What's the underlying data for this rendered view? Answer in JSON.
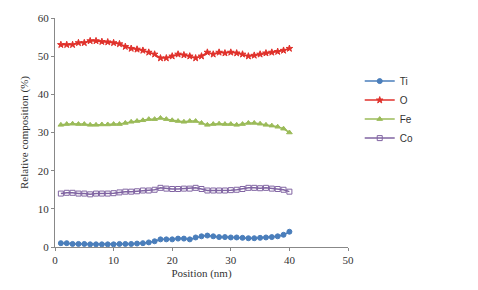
{
  "chart_data": {
    "type": "line",
    "x_label": "Position (nm)",
    "y_label": "Relative composition (%)",
    "x": [
      1,
      2,
      3,
      4,
      5,
      6,
      7,
      8,
      9,
      10,
      11,
      12,
      13,
      14,
      15,
      16,
      17,
      18,
      19,
      20,
      21,
      22,
      23,
      24,
      25,
      26,
      27,
      28,
      29,
      30,
      31,
      32,
      33,
      34,
      35,
      36,
      37,
      38,
      39,
      40
    ],
    "series": [
      {
        "name": "Ti",
        "color": "#4a7ebb",
        "marker": "circle",
        "line_style": "solid",
        "values": [
          1,
          1,
          0.8,
          0.8,
          0.8,
          0.7,
          0.7,
          0.7,
          0.7,
          0.7,
          0.8,
          0.8,
          0.8,
          0.9,
          1,
          1.2,
          1.5,
          2,
          2,
          2,
          2.2,
          2.2,
          2,
          2.5,
          2.8,
          3,
          2.8,
          2.6,
          2.6,
          2.5,
          2.5,
          2.4,
          2.3,
          2.3,
          2.4,
          2.5,
          2.6,
          2.8,
          3.2,
          4
        ]
      },
      {
        "name": "O",
        "color": "#e0312b",
        "marker": "star",
        "line_style": "solid",
        "values": [
          53,
          53,
          53,
          53.5,
          53.5,
          54,
          54,
          53.8,
          53.7,
          53.5,
          53.2,
          52.5,
          52,
          51.8,
          51.5,
          51,
          50.5,
          49.5,
          49.5,
          50,
          50.5,
          50.3,
          50,
          49.5,
          50,
          51,
          50.5,
          51,
          50.8,
          51,
          50.8,
          50.5,
          50,
          50.2,
          50.5,
          50.8,
          51,
          51.2,
          51.5,
          52
        ]
      },
      {
        "name": "Fe",
        "color": "#9bbb59",
        "marker": "triangle-up",
        "line_style": "solid",
        "values": [
          32,
          32.2,
          32.3,
          32.2,
          32.2,
          32,
          32,
          32.1,
          32.1,
          32.2,
          32.2,
          32.5,
          32.8,
          33,
          33.2,
          33.5,
          33.5,
          33.8,
          33.5,
          33.2,
          33,
          32.8,
          33,
          33,
          32.5,
          32,
          32.2,
          32.3,
          32.2,
          32.2,
          32,
          32.2,
          32.5,
          32.5,
          32.3,
          32,
          31.8,
          31.5,
          31,
          30
        ]
      },
      {
        "name": "Co",
        "color": "#8064a2",
        "marker": "square-open",
        "line_style": "solid",
        "values": [
          14,
          14.2,
          14.2,
          14,
          14,
          13.8,
          14,
          14,
          14,
          14.1,
          14.3,
          14.5,
          14.5,
          14.6,
          14.8,
          14.8,
          15,
          15.5,
          15.3,
          15.2,
          15.2,
          15.3,
          15.3,
          15.5,
          15.2,
          14.8,
          14.8,
          14.8,
          14.8,
          14.9,
          15,
          15.2,
          15.5,
          15.5,
          15.4,
          15.5,
          15.3,
          15.2,
          15,
          14.5
        ]
      }
    ],
    "xlim": [
      0,
      50
    ],
    "xticks": [
      0,
      10,
      20,
      30,
      40,
      50
    ],
    "ylim": [
      0,
      60
    ],
    "yticks": [
      0,
      10,
      20,
      30,
      40,
      50,
      60
    ],
    "grid": false,
    "legend": "right"
  }
}
